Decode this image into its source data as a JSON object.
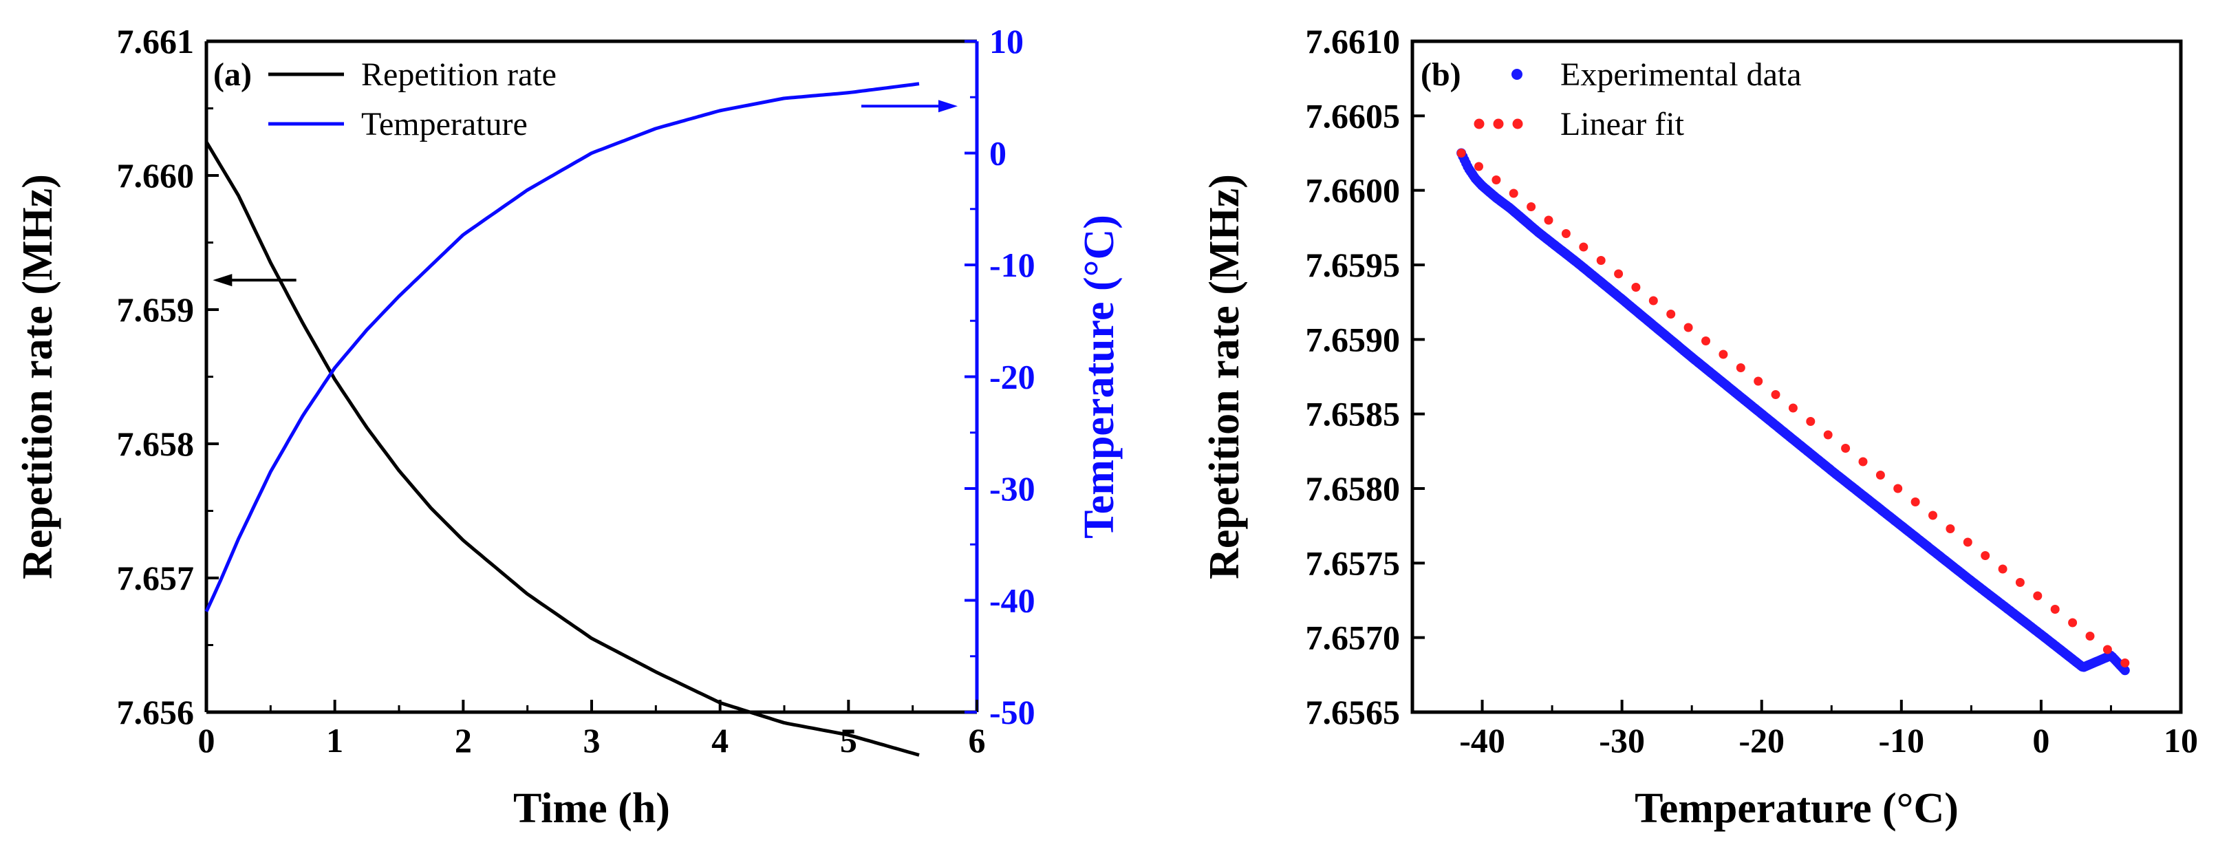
{
  "chart_data": [
    {
      "type": "line",
      "panel_label": "(a)",
      "xlabel": "Time (h)",
      "ylabel": "Repetition rate (MHz)",
      "y2label": "Temperature (°C)",
      "xlim": [
        0,
        6
      ],
      "ylim": [
        7.656,
        7.661
      ],
      "y2lim": [
        -50,
        10
      ],
      "x_ticks": [
        "0",
        "1",
        "2",
        "3",
        "4",
        "5",
        "6"
      ],
      "y_ticks": [
        "7.656",
        "7.657",
        "7.658",
        "7.659",
        "7.660",
        "7.661"
      ],
      "y2_ticks": [
        "-50",
        "-40",
        "-30",
        "-20",
        "-10",
        "0",
        "10"
      ],
      "legend": "top-left",
      "series": [
        {
          "name": "Repetition rate",
          "axis": "left",
          "color": "#000000",
          "x": [
            0,
            0.25,
            0.5,
            0.75,
            1.0,
            1.25,
            1.5,
            1.75,
            2.0,
            2.5,
            3.0,
            3.5,
            4.0,
            4.5,
            5.0,
            5.55
          ],
          "y": [
            7.66025,
            7.65985,
            7.65935,
            7.6589,
            7.65848,
            7.65812,
            7.6578,
            7.65752,
            7.65728,
            7.65688,
            7.65655,
            7.6563,
            7.65607,
            7.65592,
            7.65583,
            7.65568
          ]
        },
        {
          "name": "Temperature",
          "axis": "right",
          "color": "#0a0aff",
          "x": [
            0,
            0.1,
            0.25,
            0.5,
            0.75,
            1.0,
            1.25,
            1.5,
            2.0,
            2.5,
            3.0,
            3.5,
            4.0,
            4.5,
            5.0,
            5.55
          ],
          "y": [
            -41,
            -38.5,
            -34.5,
            -28.5,
            -23.5,
            -19.2,
            -15.8,
            -12.8,
            -7.3,
            -3.3,
            0.0,
            2.2,
            3.8,
            4.9,
            5.4,
            6.2
          ]
        }
      ],
      "annotations": [
        "arrow-left-to-repetition-axis",
        "arrow-right-to-temperature-axis"
      ]
    },
    {
      "type": "scatter",
      "panel_label": "(b)",
      "xlabel": "Temperature (°C)",
      "ylabel": "Repetition rate (MHz)",
      "xlim": [
        -45,
        10
      ],
      "ylim": [
        7.6565,
        7.661
      ],
      "x_ticks": [
        "-40",
        "-30",
        "-20",
        "-10",
        "0",
        "10"
      ],
      "y_ticks": [
        "7.6565",
        "7.6570",
        "7.6575",
        "7.6580",
        "7.6585",
        "7.6590",
        "7.6595",
        "7.6600",
        "7.6605",
        "7.6610"
      ],
      "legend": "top-left",
      "series": [
        {
          "name": "Experimental data",
          "marker": "dot",
          "color": "#1a1aff",
          "x": [
            -41.5,
            -41.0,
            -40.5,
            -40.0,
            -39.0,
            -38.0,
            -36.0,
            -33.0,
            -30.0,
            -25.0,
            -20.0,
            -15.0,
            -10.0,
            -5.0,
            0.0,
            3.0,
            5.0,
            6.0
          ],
          "y": [
            7.66025,
            7.66015,
            7.66008,
            7.66003,
            7.65995,
            7.65988,
            7.65972,
            7.6595,
            7.65927,
            7.65888,
            7.6585,
            7.65812,
            7.65775,
            7.65738,
            7.65702,
            7.6568,
            7.65688,
            7.65678
          ]
        },
        {
          "name": "Linear fit",
          "marker": "dotted-line",
          "color": "#ff2020",
          "x": [
            -41.5,
            6.0
          ],
          "y": [
            7.66025,
            7.65683
          ]
        }
      ]
    }
  ]
}
